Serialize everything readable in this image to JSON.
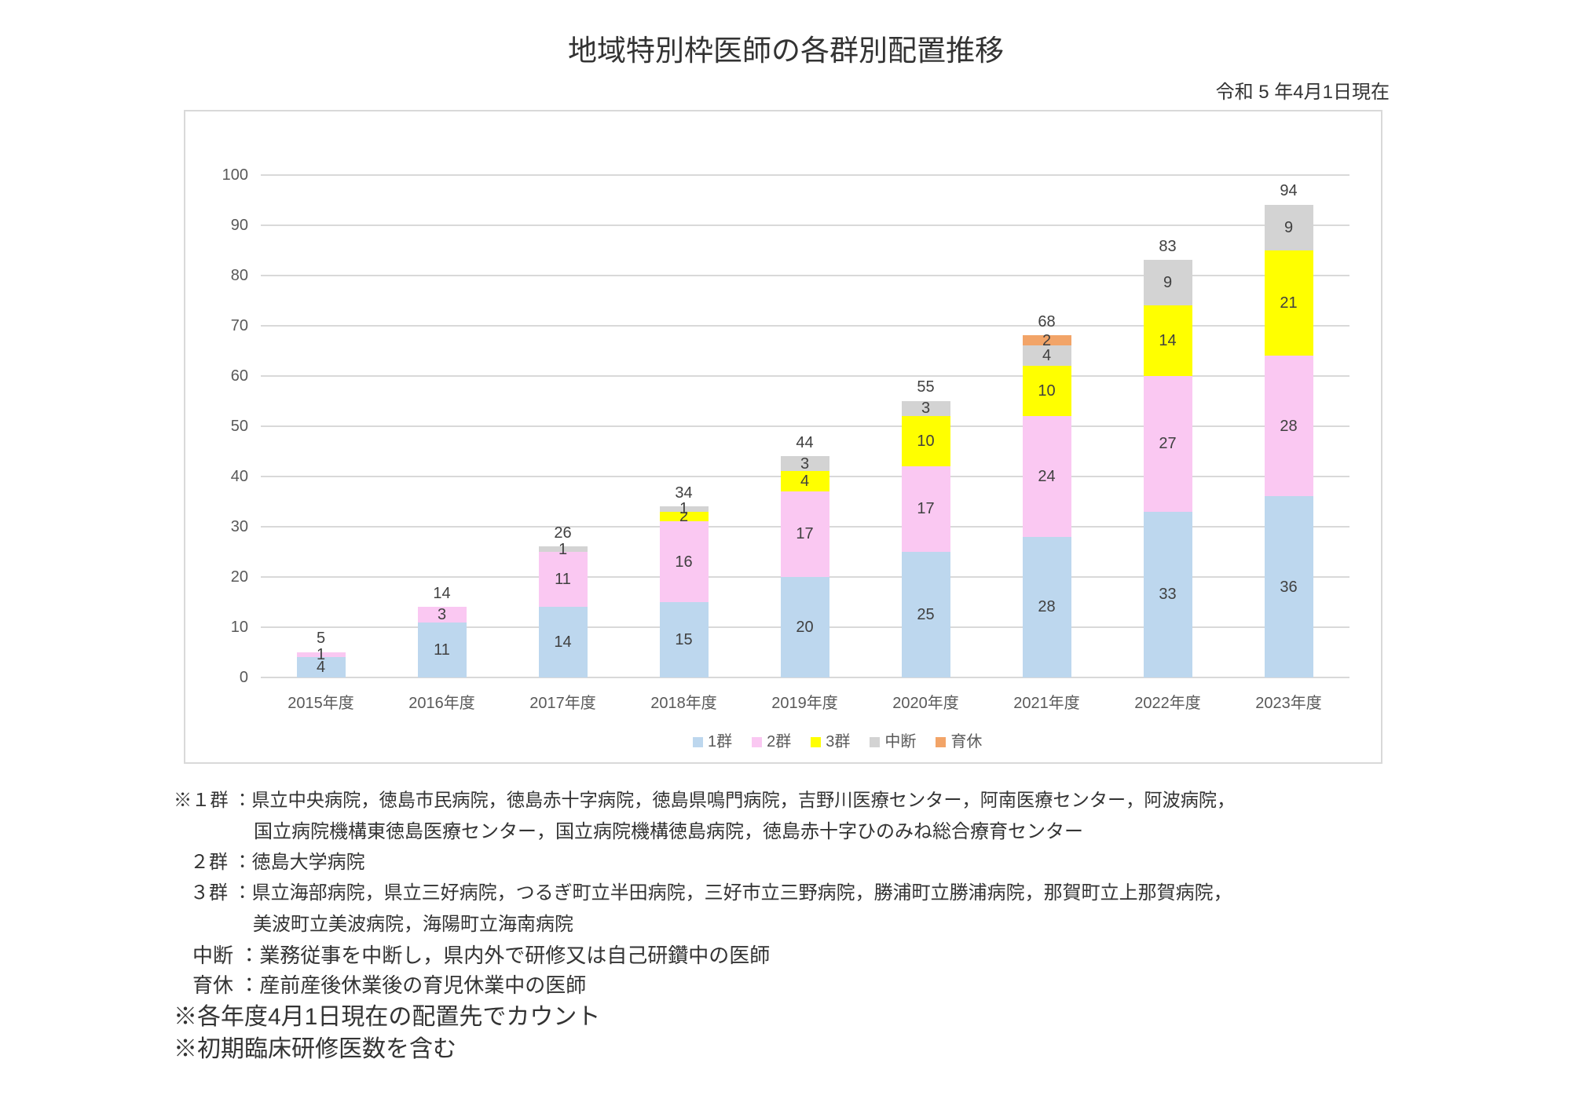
{
  "page": {
    "title": "地域特別枠医師の各群別配置推移",
    "date_note": "令和 5 年4月1日現在"
  },
  "chart_data": {
    "type": "bar",
    "stacked": true,
    "title": "地域特別枠医師の各群別配置推移",
    "xlabel": "",
    "ylabel": "",
    "categories": [
      "2015年度",
      "2016年度",
      "2017年度",
      "2018年度",
      "2019年度",
      "2020年度",
      "2021年度",
      "2022年度",
      "2023年度"
    ],
    "series": [
      {
        "name": "1群",
        "color": "#bdd7ee",
        "values": [
          4,
          11,
          14,
          15,
          20,
          25,
          28,
          33,
          36
        ]
      },
      {
        "name": "2群",
        "color": "#fac8f2",
        "values": [
          1,
          3,
          11,
          16,
          17,
          17,
          24,
          27,
          28
        ]
      },
      {
        "name": "3群",
        "color": "#ffff00",
        "values": [
          0,
          0,
          0,
          2,
          4,
          10,
          10,
          14,
          21
        ]
      },
      {
        "name": "中断",
        "color": "#d3d3d3",
        "values": [
          0,
          0,
          1,
          1,
          3,
          3,
          4,
          9,
          9
        ]
      },
      {
        "name": "育休",
        "color": "#f2a468",
        "values": [
          0,
          0,
          0,
          0,
          0,
          0,
          2,
          0,
          0
        ]
      }
    ],
    "totals": [
      5,
      14,
      26,
      34,
      44,
      55,
      68,
      83,
      94
    ],
    "ylim": [
      0,
      100
    ],
    "ytick_step": 10,
    "grid": true,
    "legend_position": "bottom",
    "colors": {
      "gridline": "#d9d9d9",
      "plot_border": "#d9d9d9",
      "axis_label": "#595959",
      "bar_label": "#404040",
      "legend_label": "#595959"
    }
  },
  "footnotes": [
    {
      "text": "※１群 ：県立中央病院，徳島市民病院，徳島赤十字病院，徳島県鳴門病院，吉野川医療センター，阿南医療センター，阿波病院，"
    },
    {
      "text": "国立病院機構東徳島医療センター，国立病院機構徳島病院，徳島赤十字ひのみね総合療育センター"
    },
    {
      "text": "２群 ：徳島大学病院"
    },
    {
      "text": "３群 ：県立海部病院，県立三好病院，つるぎ町立半田病院，三好市立三野病院，勝浦町立勝浦病院，那賀町立上那賀病院，"
    },
    {
      "text": "美波町立美波病院，海陽町立海南病院"
    },
    {
      "text": "中断 ：業務従事を中断し，県内外で研修又は自己研鑽中の医師"
    },
    {
      "text": "育休 ：産前産後休業後の育児休業中の医師"
    },
    {
      "text": "※各年度4月1日現在の配置先でカウント"
    },
    {
      "text": "※初期臨床研修医数を含む"
    }
  ]
}
